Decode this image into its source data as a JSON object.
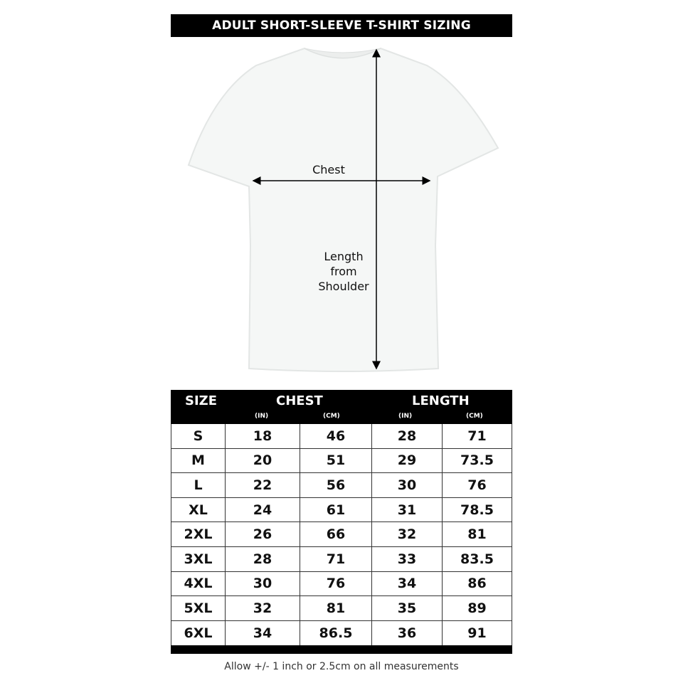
{
  "title": "ADULT SHORT-SLEEVE T-SHIRT SIZING",
  "diagram": {
    "chest_label": "Chest",
    "length_label_lines": [
      "Length",
      "from",
      "Shoulder"
    ]
  },
  "table": {
    "headers": {
      "size": "SIZE",
      "chest": "CHEST",
      "length": "LENGTH",
      "chest_in": "(IN)",
      "chest_cm": "(CM)",
      "length_in": "(IN)",
      "length_cm": "(CM)"
    },
    "rows": [
      [
        "S",
        "18",
        "46",
        "28",
        "71"
      ],
      [
        "M",
        "20",
        "51",
        "29",
        "73.5"
      ],
      [
        "L",
        "22",
        "56",
        "30",
        "76"
      ],
      [
        "XL",
        "24",
        "61",
        "31",
        "78.5"
      ],
      [
        "2XL",
        "26",
        "66",
        "32",
        "81"
      ],
      [
        "3XL",
        "28",
        "71",
        "33",
        "83.5"
      ],
      [
        "4XL",
        "30",
        "76",
        "34",
        "86"
      ],
      [
        "5XL",
        "32",
        "81",
        "35",
        "89"
      ],
      [
        "6XL",
        "34",
        "86.5",
        "36",
        "91"
      ]
    ]
  },
  "note": "Allow +/- 1 inch or 2.5cm on all measurements"
}
